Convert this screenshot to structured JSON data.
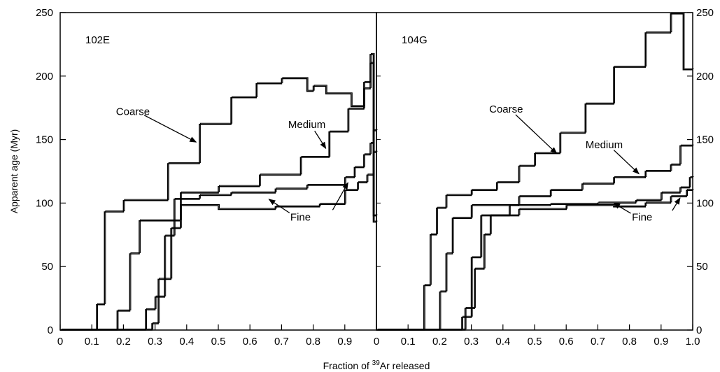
{
  "chart_data": {
    "type": "line",
    "ylabel": "Apparent age (Myr)",
    "xlabel_pre": "Fraction of ",
    "xlabel_sup": "39",
    "xlabel_post": "Ar released",
    "ylim": [
      0,
      250
    ],
    "yticks": [
      0,
      50,
      100,
      150,
      200,
      250
    ],
    "grid": false,
    "panels": [
      {
        "label": "102E",
        "xlim": [
          0,
          1
        ],
        "xticks": [
          0,
          0.1,
          0.2,
          0.3,
          0.4,
          0.5,
          0.6,
          0.7,
          0.8,
          0.9
        ],
        "xtick_labels": [
          "0",
          "0.1",
          "0.2",
          "0.3",
          "0.4",
          "0.5",
          "0.6",
          "0.7",
          "0.8",
          "0.9"
        ],
        "series": [
          {
            "steps": [
              [
                0,
                0
              ],
              [
                0.115,
                0
              ],
              [
                0.115,
                20
              ],
              [
                0.14,
                20
              ],
              [
                0.14,
                93
              ],
              [
                0.2,
                93
              ],
              [
                0.2,
                102
              ],
              [
                0.34,
                102
              ],
              [
                0.34,
                131
              ],
              [
                0.44,
                131
              ],
              [
                0.44,
                162
              ],
              [
                0.54,
                162
              ],
              [
                0.54,
                183
              ],
              [
                0.62,
                183
              ],
              [
                0.62,
                194
              ],
              [
                0.7,
                194
              ],
              [
                0.7,
                198
              ],
              [
                0.78,
                198
              ],
              [
                0.78,
                188
              ],
              [
                0.8,
                188
              ],
              [
                0.8,
                192
              ],
              [
                0.84,
                192
              ],
              [
                0.84,
                186
              ],
              [
                0.92,
                186
              ],
              [
                0.92,
                176
              ],
              [
                0.96,
                176
              ],
              [
                0.96,
                195
              ],
              [
                0.98,
                195
              ],
              [
                0.98,
                217
              ],
              [
                0.99,
                217
              ],
              [
                0.99,
                90
              ],
              [
                1,
                90
              ]
            ]
          },
          {
            "steps": [
              [
                0,
                0
              ],
              [
                0.18,
                0
              ],
              [
                0.18,
                15
              ],
              [
                0.22,
                15
              ],
              [
                0.22,
                60
              ],
              [
                0.25,
                60
              ],
              [
                0.25,
                86
              ],
              [
                0.38,
                86
              ],
              [
                0.38,
                108
              ],
              [
                0.5,
                108
              ],
              [
                0.5,
                113
              ],
              [
                0.63,
                113
              ],
              [
                0.63,
                122
              ],
              [
                0.76,
                122
              ],
              [
                0.76,
                136
              ],
              [
                0.85,
                136
              ],
              [
                0.85,
                156
              ],
              [
                0.91,
                156
              ],
              [
                0.91,
                174
              ],
              [
                0.96,
                174
              ],
              [
                0.96,
                190
              ],
              [
                0.98,
                190
              ],
              [
                0.98,
                210
              ],
              [
                0.99,
                210
              ],
              [
                0.99,
                85
              ],
              [
                1,
                85
              ]
            ]
          },
          {
            "steps": [
              [
                0,
                0
              ],
              [
                0.27,
                0
              ],
              [
                0.27,
                16
              ],
              [
                0.3,
                16
              ],
              [
                0.3,
                26
              ],
              [
                0.33,
                26
              ],
              [
                0.33,
                74
              ],
              [
                0.36,
                74
              ],
              [
                0.36,
                103
              ],
              [
                0.44,
                103
              ],
              [
                0.44,
                106
              ],
              [
                0.54,
                106
              ],
              [
                0.54,
                108
              ],
              [
                0.68,
                108
              ],
              [
                0.68,
                111
              ],
              [
                0.78,
                111
              ],
              [
                0.78,
                114
              ],
              [
                0.9,
                114
              ],
              [
                0.9,
                120
              ],
              [
                0.93,
                120
              ],
              [
                0.93,
                128
              ],
              [
                0.96,
                128
              ],
              [
                0.96,
                138
              ],
              [
                0.98,
                138
              ],
              [
                0.98,
                147
              ],
              [
                0.99,
                147
              ],
              [
                0.99,
                157
              ],
              [
                1,
                157
              ]
            ]
          },
          {
            "steps": [
              [
                0,
                0
              ],
              [
                0.29,
                0
              ],
              [
                0.29,
                5
              ],
              [
                0.31,
                5
              ],
              [
                0.31,
                40
              ],
              [
                0.35,
                40
              ],
              [
                0.35,
                80
              ],
              [
                0.38,
                80
              ],
              [
                0.38,
                98
              ],
              [
                0.5,
                98
              ],
              [
                0.5,
                95
              ],
              [
                0.68,
                95
              ],
              [
                0.68,
                97
              ],
              [
                0.82,
                97
              ],
              [
                0.82,
                99
              ],
              [
                0.9,
                99
              ],
              [
                0.9,
                110
              ],
              [
                0.94,
                110
              ],
              [
                0.94,
                116
              ],
              [
                0.97,
                116
              ],
              [
                0.97,
                122
              ],
              [
                0.99,
                122
              ],
              [
                0.99,
                140
              ],
              [
                1,
                140
              ]
            ]
          }
        ],
        "annotations": [
          {
            "label": "Coarse",
            "tx": 0.23,
            "ty": 172,
            "ax": 0.43,
            "ay": 148
          },
          {
            "label": "Medium",
            "tx": 0.78,
            "ty": 162,
            "ax": 0.84,
            "ay": 143
          },
          {
            "label": "Fine",
            "tx": 0.76,
            "ty": 89,
            "ax": 0.66,
            "ay": 103
          },
          {
            "label": "",
            "tx": 0.84,
            "ty": 89,
            "ax": 0.91,
            "ay": 116
          }
        ]
      },
      {
        "label": "104G",
        "xlim": [
          0,
          1
        ],
        "xticks": [
          0,
          0.1,
          0.2,
          0.3,
          0.4,
          0.5,
          0.6,
          0.7,
          0.8,
          0.9,
          1.0
        ],
        "xtick_labels": [
          "0",
          "0.1",
          "0.2",
          "0.3",
          "0.4",
          "0.5",
          "0.6",
          "0.7",
          "0.8",
          "0.9",
          "1.0"
        ],
        "series": [
          {
            "steps": [
              [
                0,
                0
              ],
              [
                0.15,
                0
              ],
              [
                0.15,
                35
              ],
              [
                0.17,
                35
              ],
              [
                0.17,
                75
              ],
              [
                0.19,
                75
              ],
              [
                0.19,
                96
              ],
              [
                0.22,
                96
              ],
              [
                0.22,
                106
              ],
              [
                0.3,
                106
              ],
              [
                0.3,
                110
              ],
              [
                0.38,
                110
              ],
              [
                0.38,
                116
              ],
              [
                0.45,
                116
              ],
              [
                0.45,
                129
              ],
              [
                0.5,
                129
              ],
              [
                0.5,
                139
              ],
              [
                0.58,
                139
              ],
              [
                0.58,
                155
              ],
              [
                0.66,
                155
              ],
              [
                0.66,
                178
              ],
              [
                0.75,
                178
              ],
              [
                0.75,
                207
              ],
              [
                0.85,
                207
              ],
              [
                0.85,
                234
              ],
              [
                0.93,
                234
              ],
              [
                0.93,
                249
              ],
              [
                0.97,
                249
              ],
              [
                0.97,
                205
              ],
              [
                1,
                205
              ]
            ]
          },
          {
            "steps": [
              [
                0,
                0
              ],
              [
                0.2,
                0
              ],
              [
                0.2,
                30
              ],
              [
                0.22,
                30
              ],
              [
                0.22,
                60
              ],
              [
                0.24,
                60
              ],
              [
                0.24,
                88
              ],
              [
                0.3,
                88
              ],
              [
                0.3,
                98
              ],
              [
                0.45,
                98
              ],
              [
                0.45,
                105
              ],
              [
                0.55,
                105
              ],
              [
                0.55,
                110
              ],
              [
                0.65,
                110
              ],
              [
                0.65,
                115
              ],
              [
                0.75,
                115
              ],
              [
                0.75,
                120
              ],
              [
                0.85,
                120
              ],
              [
                0.85,
                125
              ],
              [
                0.93,
                125
              ],
              [
                0.93,
                130
              ],
              [
                0.96,
                130
              ],
              [
                0.96,
                145
              ],
              [
                1,
                145
              ]
            ]
          },
          {
            "steps": [
              [
                0,
                0
              ],
              [
                0.27,
                0
              ],
              [
                0.27,
                10
              ],
              [
                0.3,
                10
              ],
              [
                0.3,
                57
              ],
              [
                0.33,
                57
              ],
              [
                0.33,
                90
              ],
              [
                0.42,
                90
              ],
              [
                0.42,
                98
              ],
              [
                0.55,
                98
              ],
              [
                0.55,
                99
              ],
              [
                0.7,
                99
              ],
              [
                0.7,
                100
              ],
              [
                0.82,
                100
              ],
              [
                0.82,
                102
              ],
              [
                0.9,
                102
              ],
              [
                0.9,
                108
              ],
              [
                0.96,
                108
              ],
              [
                0.96,
                112
              ],
              [
                0.99,
                112
              ],
              [
                0.99,
                120
              ],
              [
                1,
                120
              ]
            ]
          },
          {
            "steps": [
              [
                0,
                0
              ],
              [
                0.28,
                0
              ],
              [
                0.28,
                17
              ],
              [
                0.31,
                17
              ],
              [
                0.31,
                48
              ],
              [
                0.34,
                48
              ],
              [
                0.34,
                75
              ],
              [
                0.36,
                75
              ],
              [
                0.36,
                90
              ],
              [
                0.45,
                90
              ],
              [
                0.45,
                95
              ],
              [
                0.6,
                95
              ],
              [
                0.6,
                98
              ],
              [
                0.75,
                98
              ],
              [
                0.75,
                97
              ],
              [
                0.85,
                97
              ],
              [
                0.85,
                100
              ],
              [
                0.93,
                100
              ],
              [
                0.93,
                105
              ],
              [
                0.98,
                105
              ],
              [
                0.98,
                110
              ],
              [
                1,
                110
              ]
            ]
          }
        ],
        "annotations": [
          {
            "label": "Coarse",
            "tx": 0.41,
            "ty": 174,
            "ax": 0.57,
            "ay": 139
          },
          {
            "label": "Medium",
            "tx": 0.72,
            "ty": 146,
            "ax": 0.83,
            "ay": 123
          },
          {
            "label": "Fine",
            "tx": 0.84,
            "ty": 89,
            "ax": 0.75,
            "ay": 100
          },
          {
            "label": "",
            "tx": 0.91,
            "ty": 89,
            "ax": 0.96,
            "ay": 104
          }
        ]
      }
    ]
  }
}
